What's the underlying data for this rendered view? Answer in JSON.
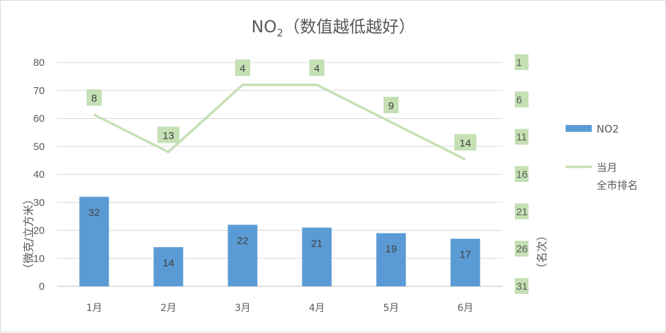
{
  "chart_data": {
    "type": "bar",
    "title": "NO",
    "title_subscript": "2",
    "title_suffix": "（数值越低越好）",
    "categories": [
      "1月",
      "2月",
      "3月",
      "4月",
      "5月",
      "6月"
    ],
    "series": [
      {
        "name": "NO2",
        "type": "bar",
        "axis": "left",
        "values": [
          32,
          14,
          22,
          21,
          19,
          17
        ],
        "color": "#5b9bd5"
      },
      {
        "name": "当月全市排名",
        "legend_lines": [
          "当月",
          "全市排名"
        ],
        "type": "line",
        "axis": "right",
        "values": [
          8,
          13,
          4,
          4,
          9,
          14
        ],
        "color": "#c5e0b4"
      }
    ],
    "y_left": {
      "label": "（微克/立方米）",
      "min": 0,
      "max": 80,
      "ticks": [
        0,
        10,
        20,
        30,
        40,
        50,
        60,
        70,
        80
      ]
    },
    "y_right": {
      "label": "（名次）",
      "min": 1,
      "max": 31,
      "reversed": true,
      "ticks": [
        1,
        6,
        11,
        16,
        21,
        26,
        31
      ]
    },
    "grid": true,
    "legend_position": "right"
  }
}
